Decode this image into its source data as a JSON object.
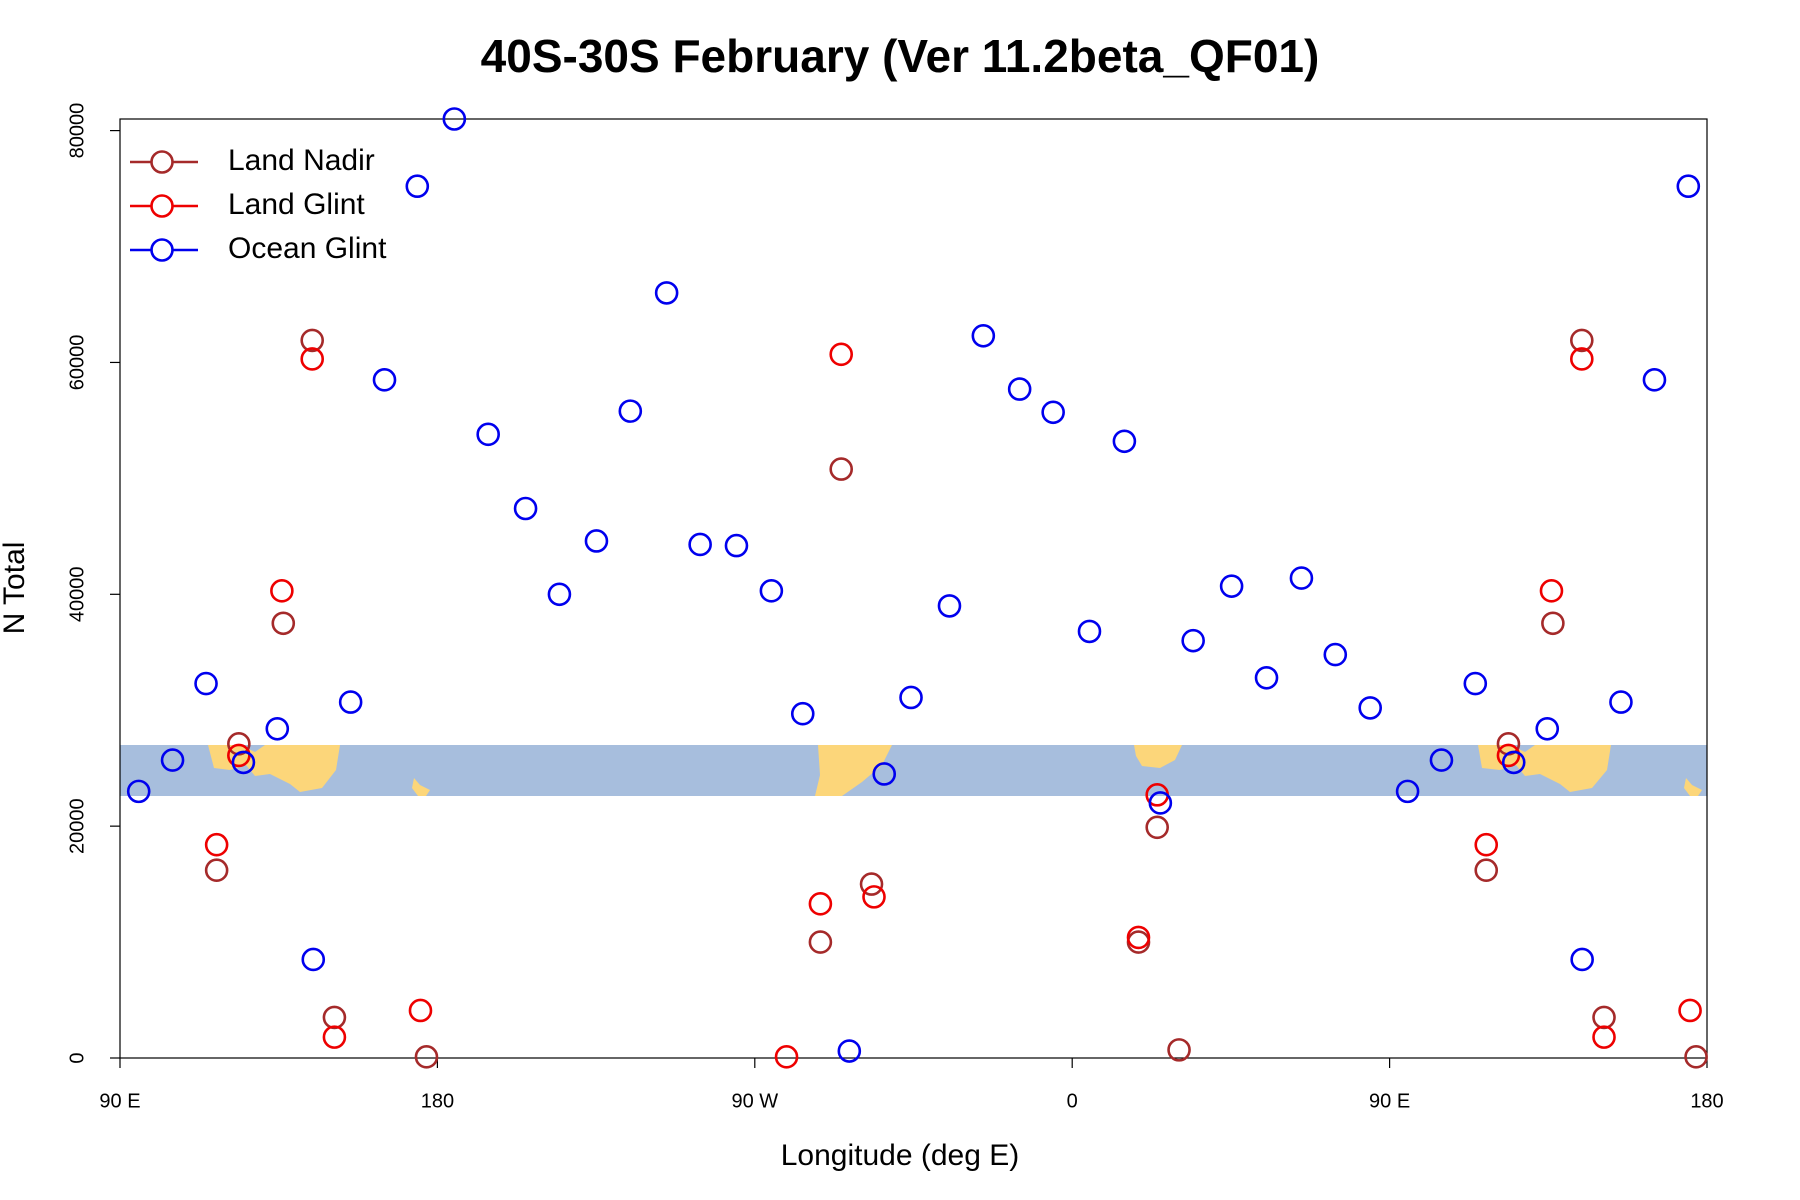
{
  "chart_data": {
    "type": "scatter",
    "title": "40S-30S February (Ver 11.2beta_QF01)",
    "x_label": "Longitude (deg E)",
    "y_label": "N Total",
    "xlim": [
      90,
      540
    ],
    "ylim": [
      0,
      81000
    ],
    "xticks": [
      {
        "value": 90,
        "label": "90 E"
      },
      180,
      {
        "value": 270,
        "label": "90 W"
      },
      {
        "value": 360,
        "label": "0"
      },
      {
        "value": 450,
        "label": "90 E"
      },
      {
        "value": 540,
        "label": "180"
      }
    ],
    "yticks": [
      0,
      20000,
      40000,
      60000,
      80000
    ],
    "legend": "top-left",
    "series": [
      {
        "name": "Land Nadir",
        "color": "#a52a2a",
        "x": [
          123.7,
          136.3,
          144.5,
          117.4,
          150.8,
          176.9,
          294.5,
          288.6,
          303.1,
          378.8,
          384.1,
          390.3,
          483.7,
          496.3,
          504.5,
          477.4,
          510.8,
          536.9
        ],
        "y": [
          27100,
          37500,
          61900,
          16200,
          3500,
          100,
          50800,
          10000,
          15000,
          10000,
          19900,
          700,
          27100,
          37500,
          61900,
          16200,
          3500,
          100
        ]
      },
      {
        "name": "Land Glint",
        "color": "#ee0000",
        "x": [
          123.7,
          135.9,
          144.5,
          117.4,
          150.8,
          175.2,
          279.0,
          294.5,
          288.6,
          303.8,
          378.8,
          384.1,
          483.7,
          495.9,
          504.5,
          477.4,
          510.8,
          535.2
        ],
        "y": [
          26100,
          40300,
          60300,
          18400,
          1800,
          4100,
          100,
          60700,
          13300,
          13900,
          10400,
          22700,
          26100,
          40300,
          60300,
          18400,
          1800,
          4100
        ]
      },
      {
        "name": "Ocean Glint",
        "color": "#0000ee",
        "x": [
          95.3,
          104.9,
          114.4,
          125.0,
          134.6,
          144.8,
          155.4,
          165.0,
          174.3,
          184.8,
          194.4,
          205.0,
          214.6,
          225.1,
          234.7,
          245.0,
          254.5,
          264.8,
          274.7,
          283.6,
          296.8,
          306.7,
          314.3,
          325.2,
          334.8,
          345.1,
          354.6,
          364.9,
          374.8,
          385.0,
          394.3,
          405.2,
          415.1,
          425.0,
          434.6,
          444.5,
          455.1,
          464.7,
          474.3,
          485.2,
          494.7,
          504.6,
          515.6,
          525.1,
          534.7
        ],
        "y": [
          23000,
          25700,
          32300,
          25500,
          28400,
          8500,
          30700,
          58500,
          75200,
          81000,
          53800,
          47400,
          40000,
          44600,
          55800,
          66000,
          44300,
          44200,
          40300,
          29700,
          600,
          24500,
          31100,
          39000,
          62300,
          57700,
          55700,
          36800,
          53200,
          22000,
          36000,
          40700,
          32800,
          41400,
          34800,
          30200,
          23000,
          25700,
          32300,
          25500,
          28400,
          8500,
          30700,
          58500,
          75200
        ]
      }
    ]
  }
}
